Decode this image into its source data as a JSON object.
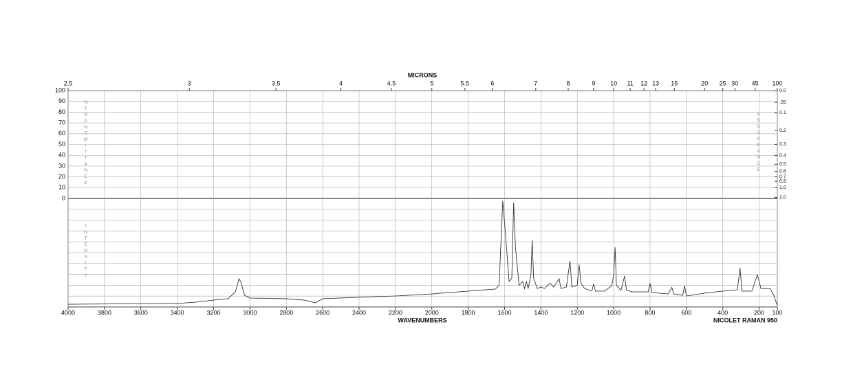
{
  "chart_data": {
    "type": "line",
    "top_axis_label": "MICRONS",
    "x_label": "WAVENUMBERS",
    "instrument": "NICOLET RAMAN 950",
    "y_label": "%TRANSMITTANCE",
    "y2_label": "ABSORBANCE",
    "intensity_label": "INTENSITY",
    "xlim": [
      4000,
      100
    ],
    "xticks": [
      4000,
      3800,
      3600,
      3400,
      3200,
      3000,
      2800,
      2600,
      2400,
      2200,
      2000,
      1800,
      1600,
      1400,
      1200,
      1000,
      800,
      600,
      400,
      200,
      100
    ],
    "micron_ticks": [
      2.5,
      3,
      3.5,
      4,
      4.5,
      5,
      5.5,
      6,
      7,
      8,
      9,
      10,
      11,
      12,
      13,
      15,
      20,
      25,
      30,
      45,
      100
    ],
    "ylim": [
      0,
      100
    ],
    "yticks": [
      100,
      90,
      80,
      70,
      60,
      50,
      40,
      30,
      20,
      10,
      0
    ],
    "y2ticks": [
      {
        "value": 0,
        "label": "0.0"
      },
      {
        "value": 0.05,
        "label": ".05"
      },
      0.1,
      0.2,
      0.3,
      0.4,
      0.5,
      0.6,
      0.7,
      0.8,
      {
        "value": 1,
        "label": "1.0"
      },
      {
        "value": 2,
        "label": "2.0"
      }
    ],
    "intensity_ylim": [
      0,
      100
    ],
    "intensity_grid": [
      10,
      20,
      30,
      40,
      50,
      60,
      70,
      80,
      90
    ],
    "grid": true,
    "series": [
      {
        "name": "Raman intensity",
        "color": "#333333",
        "x": [
          4000,
          3400,
          3300,
          3200,
          3120,
          3080,
          3060,
          3050,
          3030,
          3000,
          2800,
          2700,
          2640,
          2600,
          2400,
          2200,
          2000,
          1800,
          1650,
          1630,
          1610,
          1595,
          1575,
          1560,
          1550,
          1540,
          1520,
          1500,
          1490,
          1480,
          1470,
          1455,
          1448,
          1440,
          1420,
          1400,
          1380,
          1350,
          1330,
          1300,
          1290,
          1260,
          1240,
          1230,
          1200,
          1190,
          1180,
          1160,
          1120,
          1110,
          1100,
          1050,
          1010,
          1000,
          992,
          985,
          960,
          940,
          930,
          900,
          810,
          800,
          790,
          700,
          680,
          670,
          620,
          610,
          600,
          500,
          400,
          320,
          305,
          295,
          240,
          210,
          190,
          140,
          120,
          100
        ],
        "values": [
          2.5,
          3.2,
          4.4,
          6.3,
          7.6,
          14,
          26,
          23,
          10.8,
          8.2,
          7.6,
          6.3,
          3.8,
          7.6,
          8.9,
          10.1,
          12,
          14.6,
          16.5,
          20,
          97.5,
          67.7,
          23.4,
          26.6,
          96.2,
          55,
          20,
          23.4,
          17,
          23.4,
          17,
          29.7,
          61.4,
          26.6,
          17,
          18.4,
          17,
          22,
          18.4,
          26,
          17,
          18.4,
          42.4,
          18.4,
          20,
          39,
          22,
          17,
          14.6,
          21,
          14.6,
          14.6,
          19.6,
          29.7,
          55,
          20,
          15.2,
          28.5,
          15.8,
          13.9,
          13.9,
          22,
          13.3,
          12,
          18,
          12,
          10.8,
          19.6,
          10.1,
          12.7,
          14.6,
          15.8,
          36,
          14.6,
          14.6,
          29.7,
          17,
          17,
          10.8,
          1.3
        ]
      }
    ]
  }
}
